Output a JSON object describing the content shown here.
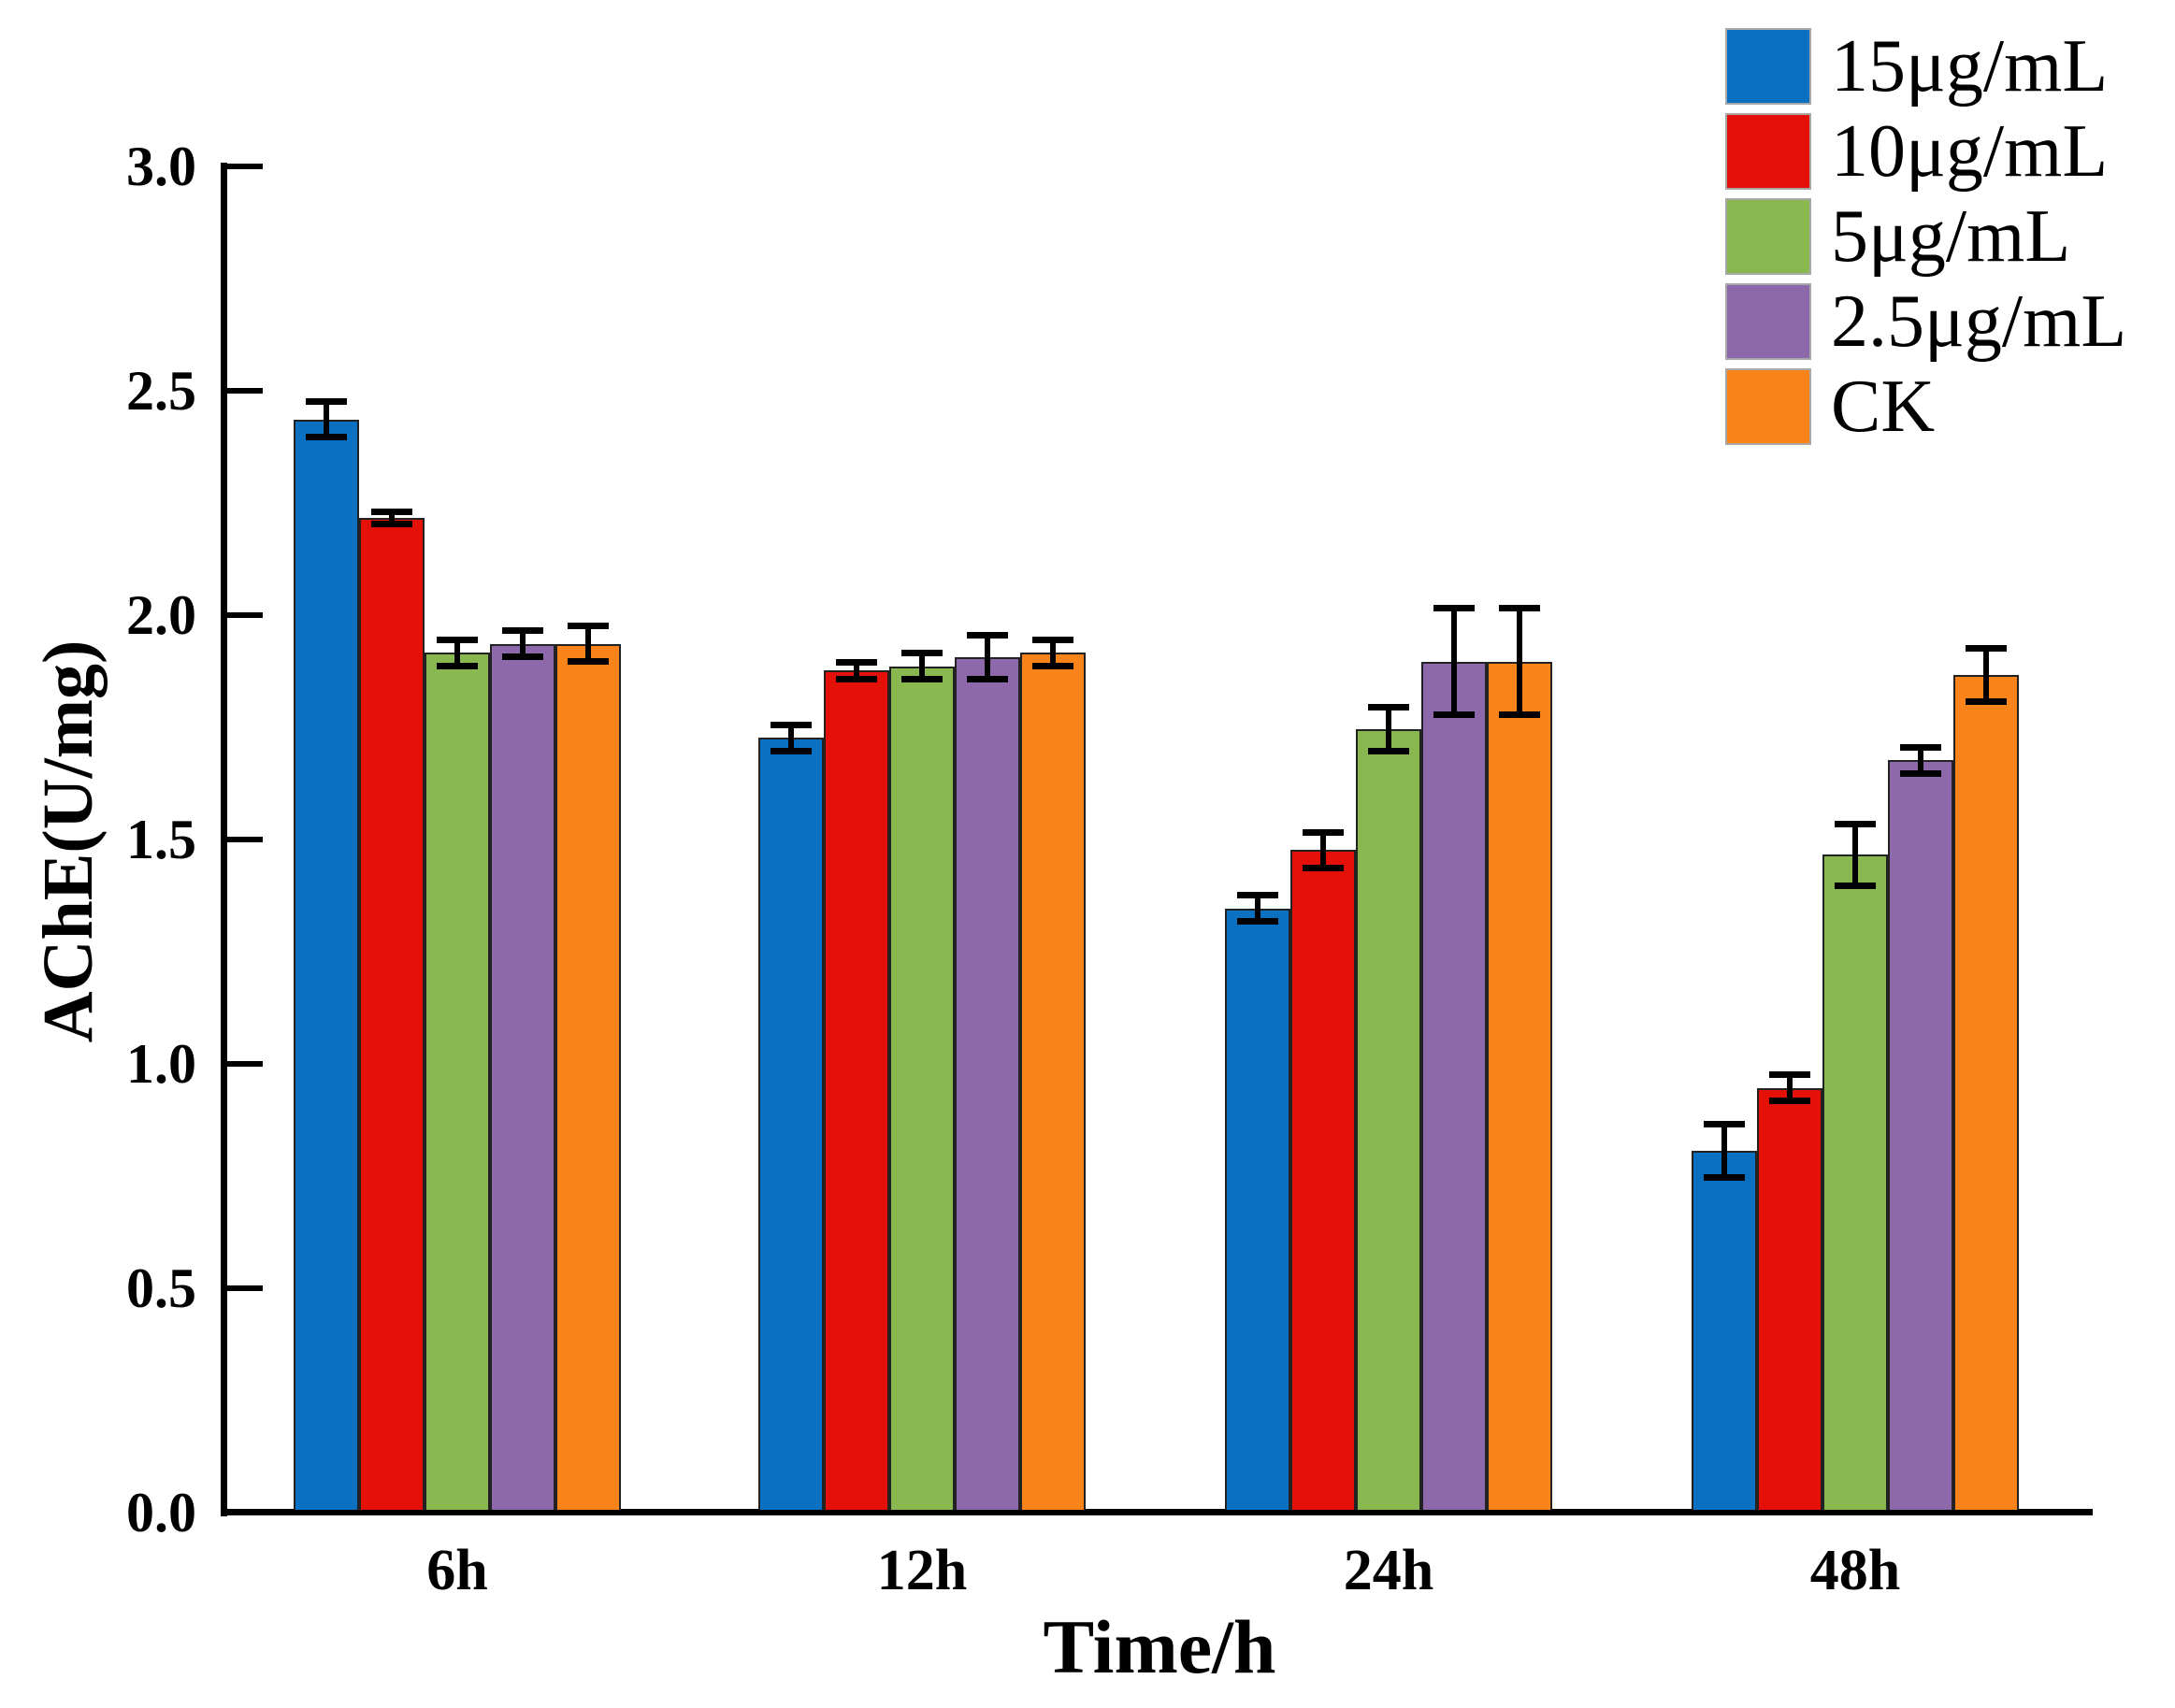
{
  "chart_data": {
    "type": "bar",
    "title": "",
    "xlabel": "Time/h",
    "ylabel": "AChE(U/mg)",
    "ylim": [
      0.0,
      3.0
    ],
    "ytick_labels": [
      "0.0",
      "0.5",
      "1.0",
      "1.5",
      "2.0",
      "2.5",
      "3.0"
    ],
    "categories": [
      "6h",
      "12h",
      "24h",
      "48h"
    ],
    "series": [
      {
        "name": "15μg/mL",
        "color": "#0a70c2",
        "values": [
          2.43,
          1.72,
          1.34,
          0.8
        ],
        "errors": [
          0.04,
          0.03,
          0.03,
          0.06
        ]
      },
      {
        "name": "10μg/mL",
        "color": "#e51008",
        "values": [
          2.21,
          1.87,
          1.47,
          0.94
        ],
        "errors": [
          0.015,
          0.02,
          0.04,
          0.03
        ]
      },
      {
        "name": "5μg/mL",
        "color": "#8ab850",
        "values": [
          1.91,
          1.88,
          1.74,
          1.46
        ],
        "errors": [
          0.03,
          0.03,
          0.05,
          0.07
        ]
      },
      {
        "name": "2.5μg/mL",
        "color": "#8d68ab",
        "values": [
          1.93,
          1.9,
          1.89,
          1.67
        ],
        "errors": [
          0.03,
          0.05,
          0.12,
          0.03
        ]
      },
      {
        "name": "CK",
        "color": "#fa8419",
        "values": [
          1.93,
          1.91,
          1.89,
          1.86
        ],
        "errors": [
          0.04,
          0.03,
          0.12,
          0.06
        ]
      }
    ],
    "error_bars": true,
    "grid": false,
    "legend_position": "top-right"
  }
}
